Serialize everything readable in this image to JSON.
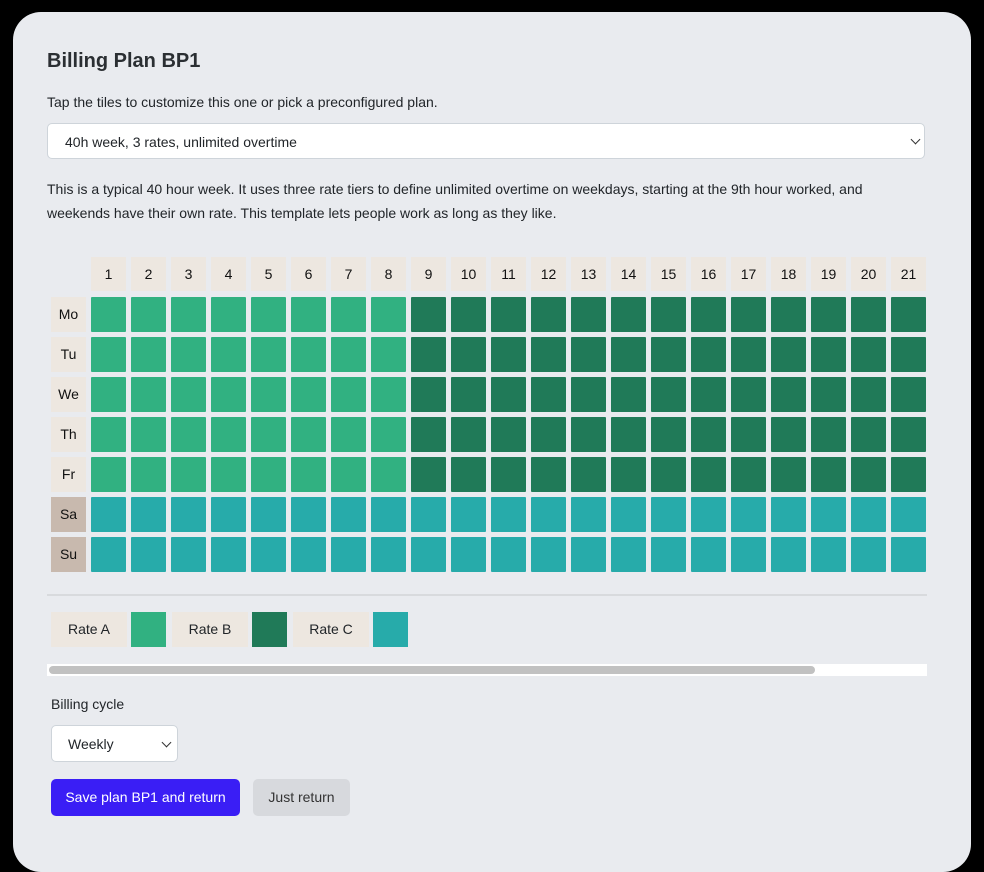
{
  "title": "Billing Plan BP1",
  "intro": "Tap the tiles to customize this one or pick a preconfigured plan.",
  "plan_select": {
    "value": "40h week, 3 rates, unlimited overtime"
  },
  "description": "This is a typical 40 hour week. It uses three rate tiers to define unlimited overtime on weekdays, starting at the 9th hour worked, and weekends have their own rate. This template lets people work as long as they like.",
  "grid": {
    "hours": [
      "1",
      "2",
      "3",
      "4",
      "5",
      "6",
      "7",
      "8",
      "9",
      "10",
      "11",
      "12",
      "13",
      "14",
      "15",
      "16",
      "17",
      "18",
      "19",
      "20",
      "21"
    ],
    "days": [
      {
        "label": "Mo",
        "weekend": false,
        "rates": [
          "A",
          "A",
          "A",
          "A",
          "A",
          "A",
          "A",
          "A",
          "B",
          "B",
          "B",
          "B",
          "B",
          "B",
          "B",
          "B",
          "B",
          "B",
          "B",
          "B",
          "B"
        ]
      },
      {
        "label": "Tu",
        "weekend": false,
        "rates": [
          "A",
          "A",
          "A",
          "A",
          "A",
          "A",
          "A",
          "A",
          "B",
          "B",
          "B",
          "B",
          "B",
          "B",
          "B",
          "B",
          "B",
          "B",
          "B",
          "B",
          "B"
        ]
      },
      {
        "label": "We",
        "weekend": false,
        "rates": [
          "A",
          "A",
          "A",
          "A",
          "A",
          "A",
          "A",
          "A",
          "B",
          "B",
          "B",
          "B",
          "B",
          "B",
          "B",
          "B",
          "B",
          "B",
          "B",
          "B",
          "B"
        ]
      },
      {
        "label": "Th",
        "weekend": false,
        "rates": [
          "A",
          "A",
          "A",
          "A",
          "A",
          "A",
          "A",
          "A",
          "B",
          "B",
          "B",
          "B",
          "B",
          "B",
          "B",
          "B",
          "B",
          "B",
          "B",
          "B",
          "B"
        ]
      },
      {
        "label": "Fr",
        "weekend": false,
        "rates": [
          "A",
          "A",
          "A",
          "A",
          "A",
          "A",
          "A",
          "A",
          "B",
          "B",
          "B",
          "B",
          "B",
          "B",
          "B",
          "B",
          "B",
          "B",
          "B",
          "B",
          "B"
        ]
      },
      {
        "label": "Sa",
        "weekend": true,
        "rates": [
          "C",
          "C",
          "C",
          "C",
          "C",
          "C",
          "C",
          "C",
          "C",
          "C",
          "C",
          "C",
          "C",
          "C",
          "C",
          "C",
          "C",
          "C",
          "C",
          "C",
          "C"
        ]
      },
      {
        "label": "Su",
        "weekend": true,
        "rates": [
          "C",
          "C",
          "C",
          "C",
          "C",
          "C",
          "C",
          "C",
          "C",
          "C",
          "C",
          "C",
          "C",
          "C",
          "C",
          "C",
          "C",
          "C",
          "C",
          "C",
          "C"
        ]
      }
    ]
  },
  "legend": [
    {
      "key": "A",
      "label": "Rate A",
      "color": "#31b181"
    },
    {
      "key": "B",
      "label": "Rate B",
      "color": "#207a58"
    },
    {
      "key": "C",
      "label": "Rate C",
      "color": "#27abaa"
    }
  ],
  "billing_cycle": {
    "label": "Billing cycle",
    "value": "Weekly"
  },
  "buttons": {
    "save": "Save plan BP1 and return",
    "back": "Just return"
  }
}
